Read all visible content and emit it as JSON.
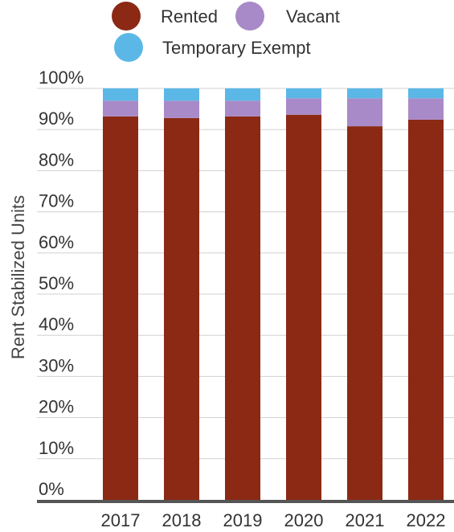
{
  "chart_data": {
    "type": "bar",
    "stacked": true,
    "categories": [
      "2017",
      "2018",
      "2019",
      "2020",
      "2021",
      "2022"
    ],
    "series": [
      {
        "name": "Rented",
        "color": "#8b2914",
        "values": [
          93.2,
          92.8,
          93.2,
          93.6,
          90.8,
          92.4
        ]
      },
      {
        "name": "Vacant",
        "color": "#a98ac8",
        "values": [
          3.8,
          4.2,
          3.8,
          4.0,
          6.8,
          5.2
        ]
      },
      {
        "name": "Temporary Exempt",
        "color": "#5bb8e6",
        "values": [
          3.0,
          3.0,
          3.0,
          2.4,
          2.4,
          2.4
        ]
      }
    ],
    "ylabel": "Rent Stabilized Units",
    "xlabel": "",
    "ylim": [
      0,
      100
    ],
    "yticks": [
      "0%",
      "10%",
      "20%",
      "30%",
      "40%",
      "50%",
      "60%",
      "70%",
      "80%",
      "90%",
      "100%"
    ],
    "grid": true,
    "legend_position": "top"
  }
}
